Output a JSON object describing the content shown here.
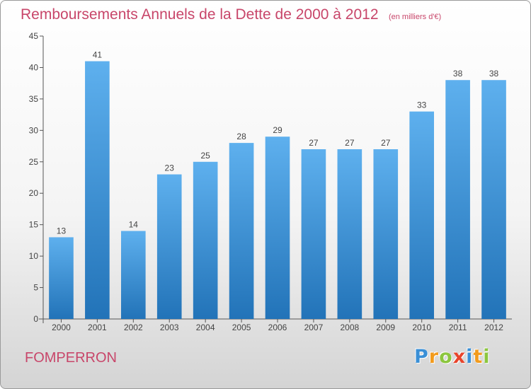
{
  "chart_data": {
    "type": "bar",
    "title": "Remboursements Annuels de la Dette de 2000 à 2012",
    "subtitle": "(en milliers d'€)",
    "xlabel": "",
    "ylabel": "",
    "categories": [
      "2000",
      "2001",
      "2002",
      "2003",
      "2004",
      "2005",
      "2006",
      "2007",
      "2008",
      "2009",
      "2010",
      "2011",
      "2012"
    ],
    "values": [
      13,
      41,
      14,
      23,
      25,
      28,
      29,
      27,
      27,
      27,
      33,
      38,
      38
    ],
    "ylim": [
      0,
      45
    ],
    "yticks": [
      0,
      5,
      10,
      15,
      20,
      25,
      30,
      35,
      40,
      45
    ],
    "grid": false,
    "data_labels": true,
    "bar_color": "#3a8fd6"
  },
  "footer": {
    "commune": "FOMPERRON",
    "logo_letters": [
      "P",
      "r",
      "o",
      "x",
      "i",
      "t",
      "i"
    ],
    "logo_colors": [
      "#3a8fd6",
      "#f29b1d",
      "#8cc63f",
      "#e8442b",
      "#3a8fd6",
      "#f29b1d",
      "#8cc63f"
    ]
  },
  "colors": {
    "accent": "#c8466a",
    "axis": "#555555"
  }
}
